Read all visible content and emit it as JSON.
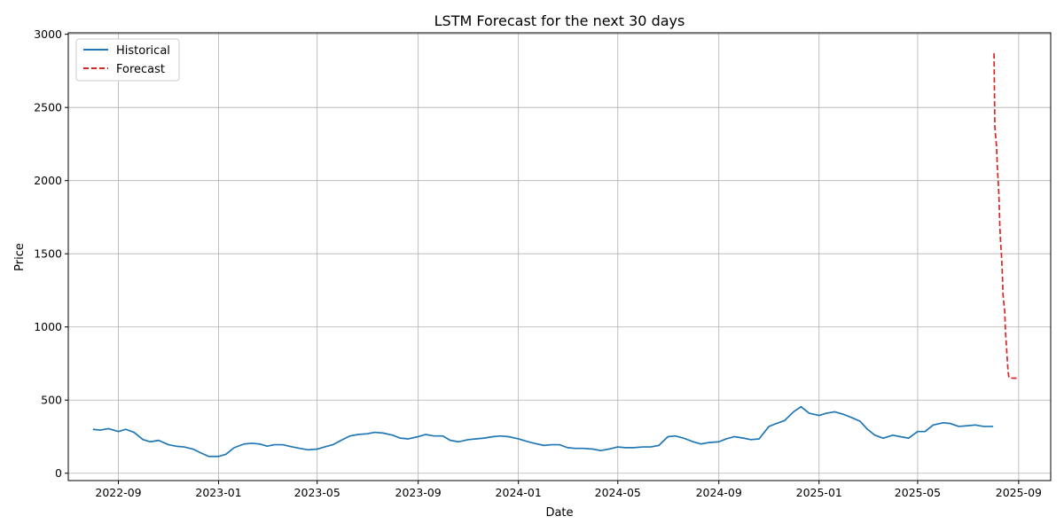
{
  "chart_data": {
    "type": "line",
    "title": "LSTM Forecast for the next 30 days",
    "xlabel": "Date",
    "ylabel": "Price",
    "x_ticks": [
      "2022-09",
      "2023-01",
      "2023-05",
      "2023-09",
      "2024-01",
      "2024-05",
      "2024-09",
      "2025-01",
      "2025-05",
      "2025-09"
    ],
    "y_ticks": [
      0,
      500,
      1000,
      1500,
      2000,
      2500,
      3000
    ],
    "xlim": [
      "2022-07-02",
      "2025-10-10"
    ],
    "ylim": [
      -50,
      3010
    ],
    "grid": true,
    "legend": "top-left",
    "series": [
      {
        "name": "Historical",
        "color": "#1f77b4",
        "style": "solid",
        "x": [
          "2022-08-01",
          "2022-08-10",
          "2022-08-20",
          "2022-09-01",
          "2022-09-10",
          "2022-09-20",
          "2022-10-01",
          "2022-10-10",
          "2022-10-20",
          "2022-11-01",
          "2022-11-10",
          "2022-11-20",
          "2022-12-01",
          "2022-12-10",
          "2022-12-20",
          "2023-01-01",
          "2023-01-10",
          "2023-01-20",
          "2023-02-01",
          "2023-02-10",
          "2023-02-20",
          "2023-03-01",
          "2023-03-10",
          "2023-03-20",
          "2023-04-01",
          "2023-04-10",
          "2023-04-20",
          "2023-05-01",
          "2023-05-10",
          "2023-05-20",
          "2023-06-01",
          "2023-06-10",
          "2023-06-20",
          "2023-07-01",
          "2023-07-10",
          "2023-07-20",
          "2023-08-01",
          "2023-08-10",
          "2023-08-20",
          "2023-09-01",
          "2023-09-10",
          "2023-09-20",
          "2023-10-01",
          "2023-10-10",
          "2023-10-20",
          "2023-11-01",
          "2023-11-10",
          "2023-11-20",
          "2023-12-01",
          "2023-12-10",
          "2023-12-20",
          "2024-01-01",
          "2024-01-10",
          "2024-01-20",
          "2024-02-01",
          "2024-02-10",
          "2024-02-20",
          "2024-03-01",
          "2024-03-10",
          "2024-03-20",
          "2024-04-01",
          "2024-04-10",
          "2024-04-20",
          "2024-05-01",
          "2024-05-10",
          "2024-05-20",
          "2024-06-01",
          "2024-06-10",
          "2024-06-20",
          "2024-07-01",
          "2024-07-10",
          "2024-07-20",
          "2024-08-01",
          "2024-08-10",
          "2024-08-20",
          "2024-09-01",
          "2024-09-10",
          "2024-09-20",
          "2024-10-01",
          "2024-10-10",
          "2024-10-20",
          "2024-11-01",
          "2024-11-10",
          "2024-11-20",
          "2024-12-01",
          "2024-12-10",
          "2024-12-20",
          "2025-01-01",
          "2025-01-10",
          "2025-01-20",
          "2025-02-01",
          "2025-02-10",
          "2025-02-20",
          "2025-03-01",
          "2025-03-10",
          "2025-03-20",
          "2025-04-01",
          "2025-04-10",
          "2025-04-20",
          "2025-05-01",
          "2025-05-10",
          "2025-05-20",
          "2025-06-01",
          "2025-06-10",
          "2025-06-20",
          "2025-07-01",
          "2025-07-10",
          "2025-07-20",
          "2025-08-01"
        ],
        "values": [
          300,
          295,
          305,
          285,
          300,
          280,
          230,
          215,
          225,
          195,
          185,
          180,
          165,
          140,
          115,
          115,
          130,
          175,
          200,
          205,
          200,
          185,
          195,
          195,
          180,
          170,
          160,
          165,
          180,
          195,
          230,
          255,
          265,
          270,
          280,
          275,
          260,
          240,
          235,
          250,
          265,
          255,
          255,
          225,
          215,
          230,
          235,
          240,
          250,
          255,
          250,
          235,
          220,
          205,
          190,
          195,
          195,
          175,
          170,
          170,
          165,
          155,
          165,
          180,
          175,
          175,
          180,
          180,
          190,
          250,
          255,
          240,
          215,
          200,
          210,
          215,
          235,
          250,
          240,
          230,
          235,
          320,
          340,
          360,
          420,
          455,
          410,
          395,
          410,
          420,
          400,
          380,
          355,
          300,
          260,
          240,
          260,
          250,
          240,
          285,
          285,
          330,
          345,
          340,
          320,
          325,
          330,
          320,
          320
        ]
      },
      {
        "name": "Forecast",
        "color": "#d62728",
        "style": "dashed",
        "x": [
          "2025-08-02",
          "2025-08-03",
          "2025-08-04",
          "2025-08-05",
          "2025-08-06",
          "2025-08-07",
          "2025-08-08",
          "2025-08-09",
          "2025-08-10",
          "2025-08-11",
          "2025-08-12",
          "2025-08-13",
          "2025-08-14",
          "2025-08-15",
          "2025-08-16",
          "2025-08-17",
          "2025-08-18",
          "2025-08-19",
          "2025-08-20",
          "2025-08-21",
          "2025-08-22",
          "2025-08-23",
          "2025-08-24",
          "2025-08-25",
          "2025-08-26",
          "2025-08-27",
          "2025-08-28",
          "2025-08-29",
          "2025-08-30",
          "2025-08-31"
        ],
        "values": [
          2870,
          2370,
          2300,
          2240,
          2100,
          2000,
          1890,
          1700,
          1580,
          1500,
          1380,
          1220,
          1160,
          1110,
          960,
          880,
          790,
          700,
          660,
          650,
          650,
          650,
          650,
          650,
          650,
          650,
          650,
          650,
          650,
          650
        ]
      }
    ]
  }
}
